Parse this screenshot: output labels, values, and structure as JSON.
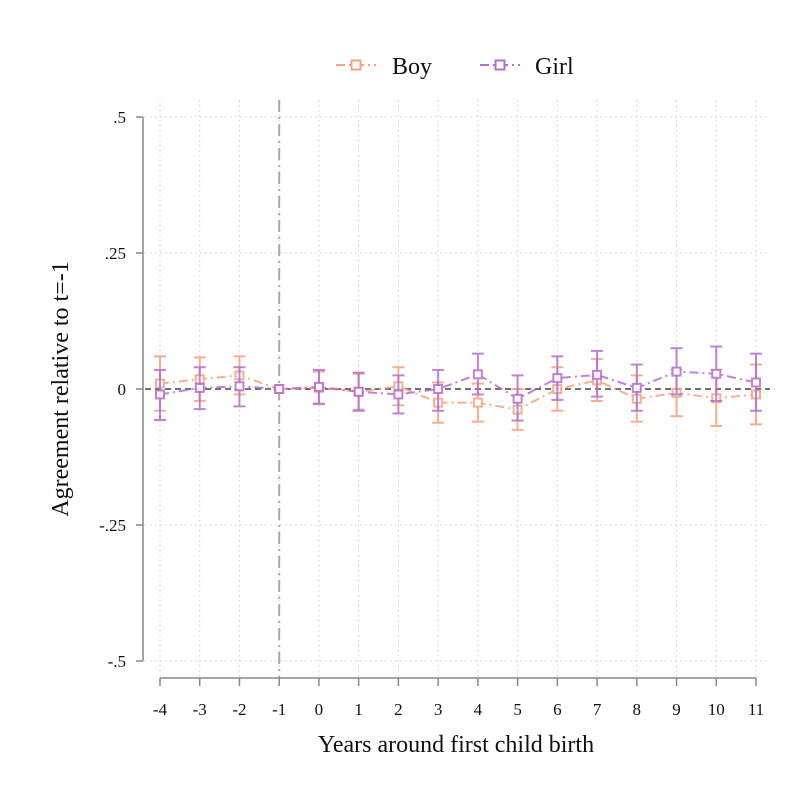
{
  "chart_data": {
    "type": "line",
    "xlabel": "Years around first child birth",
    "ylabel": "Agreement relative to t=-1",
    "x": [
      -4,
      -3,
      -2,
      -1,
      0,
      1,
      2,
      3,
      4,
      5,
      6,
      7,
      8,
      9,
      10,
      11
    ],
    "x_tick_labels": [
      "-4",
      "-3",
      "-2",
      "-1",
      "0",
      "1",
      "2",
      "3",
      "4",
      "5",
      "6",
      "7",
      "8",
      "9",
      "10",
      "11"
    ],
    "y_ticks": [
      0.5,
      0.25,
      0,
      -0.25,
      -0.5
    ],
    "y_tick_labels": [
      ".5",
      ".25",
      "0",
      "-.25",
      "-.5"
    ],
    "xlim": [
      -4,
      11
    ],
    "ylim": [
      -0.5,
      0.5
    ],
    "reference_lines": {
      "horizontal_y": 0,
      "vertical_x": -1
    },
    "grid": true,
    "legend_position": "top",
    "error_bars": "confidence intervals",
    "series": [
      {
        "name": "Boy",
        "color": "#f4a37f",
        "marker": "hollow-square",
        "line_style": "dash-dot",
        "values": [
          0.01,
          0.018,
          0.025,
          0,
          0.002,
          -0.005,
          0.005,
          -0.025,
          -0.025,
          -0.038,
          0,
          0.016,
          -0.018,
          -0.007,
          -0.017,
          -0.01
        ],
        "ci_low": [
          -0.04,
          -0.022,
          -0.01,
          0,
          -0.028,
          -0.038,
          -0.03,
          -0.062,
          -0.06,
          -0.075,
          -0.04,
          -0.022,
          -0.06,
          -0.05,
          -0.068,
          -0.065
        ],
        "ci_high": [
          0.06,
          0.058,
          0.06,
          0,
          0.032,
          0.028,
          0.04,
          0.012,
          0.01,
          0,
          0.04,
          0.055,
          0.025,
          0.035,
          0.035,
          0.045
        ]
      },
      {
        "name": "Girl",
        "color": "#b46ed0",
        "marker": "hollow-square",
        "line_style": "dash-dot",
        "values": [
          -0.01,
          0.002,
          0.005,
          0,
          0.004,
          -0.005,
          -0.01,
          0,
          0.027,
          -0.018,
          0.02,
          0.026,
          0.002,
          0.032,
          0.028,
          0.012
        ],
        "ci_low": [
          -0.057,
          -0.037,
          -0.032,
          0,
          -0.027,
          -0.04,
          -0.045,
          -0.04,
          -0.01,
          -0.058,
          -0.02,
          -0.014,
          -0.04,
          -0.01,
          -0.022,
          -0.04
        ],
        "ci_high": [
          0.035,
          0.04,
          0.04,
          0,
          0.035,
          0.03,
          0.025,
          0.035,
          0.065,
          0.025,
          0.06,
          0.07,
          0.045,
          0.075,
          0.078,
          0.065
        ]
      }
    ]
  }
}
